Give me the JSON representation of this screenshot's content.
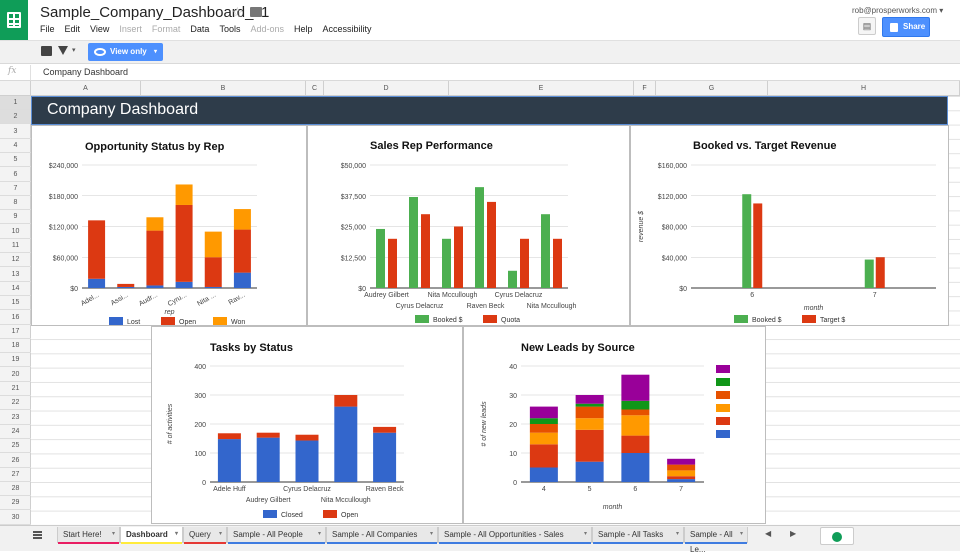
{
  "header": {
    "doc_title": "Sample_Company_Dashboard_v1",
    "user_email": "rob@prosperworks.com",
    "share_label": "Share",
    "menu": [
      {
        "label": "File",
        "disabled": false
      },
      {
        "label": "Edit",
        "disabled": false
      },
      {
        "label": "View",
        "disabled": false
      },
      {
        "label": "Insert",
        "disabled": true
      },
      {
        "label": "Format",
        "disabled": true
      },
      {
        "label": "Data",
        "disabled": false
      },
      {
        "label": "Tools",
        "disabled": false
      },
      {
        "label": "Add-ons",
        "disabled": true
      },
      {
        "label": "Help",
        "disabled": false
      },
      {
        "label": "Accessibility",
        "disabled": false
      }
    ]
  },
  "toolbar": {
    "view_only_label": "View only"
  },
  "formula_bar": {
    "fx": "fx",
    "value": "Company Dashboard"
  },
  "columns": [
    "A",
    "B",
    "C",
    "D",
    "E",
    "F",
    "G",
    "H"
  ],
  "rows": [
    "1",
    "2",
    "3",
    "4",
    "5",
    "6",
    "7",
    "8",
    "9",
    "10",
    "11",
    "12",
    "13",
    "14",
    "15",
    "16",
    "17",
    "18",
    "19",
    "20",
    "21",
    "22",
    "23",
    "24",
    "25",
    "26",
    "27",
    "28",
    "29",
    "30"
  ],
  "banner_title": "Company Dashboard",
  "charts": {
    "opportunity": {
      "title": "Opportunity Status by Rep",
      "chart_data": {
        "type": "bar",
        "stacked": true,
        "categories": [
          "Adel...",
          "Assi...",
          "Audr...",
          "Cyru...",
          "Nita ...",
          "Rav..."
        ],
        "xlabel": "rep",
        "yticks": [
          "$240,000",
          "$180,000",
          "$120,000",
          "$60,000",
          "$0"
        ],
        "ylim": [
          0,
          240000
        ],
        "series": [
          {
            "name": "Lost",
            "color": "#3366cc",
            "values": [
              18000,
              2000,
              5000,
              12000,
              2000,
              30000
            ]
          },
          {
            "name": "Open",
            "color": "#dc3912",
            "values": [
              114000,
              6000,
              107000,
              150000,
              58000,
              84000
            ]
          },
          {
            "name": "Won",
            "color": "#ff9900",
            "values": [
              0,
              0,
              26000,
              40000,
              50000,
              40000
            ]
          }
        ]
      }
    },
    "sales_rep": {
      "title": "Sales Rep Performance",
      "chart_data": {
        "type": "bar",
        "categories": [
          "Audrey Gilbert",
          "Cyrus Delacruz",
          "Nita Mccullough",
          "Raven Beck",
          "Cyrus Delacruz",
          "Nita Mccullough"
        ],
        "yticks": [
          "$50,000",
          "$37,500",
          "$25,000",
          "$12,500",
          "$0"
        ],
        "ylim": [
          0,
          50000
        ],
        "series": [
          {
            "name": "Booked $",
            "color": "#4caf50",
            "values": [
              24000,
              37000,
              20000,
              41000,
              7000,
              30000
            ]
          },
          {
            "name": "Quota",
            "color": "#dc3912",
            "values": [
              20000,
              30000,
              25000,
              35000,
              20000,
              20000
            ]
          }
        ]
      }
    },
    "booked_target": {
      "title": "Booked vs. Target Revenue",
      "chart_data": {
        "type": "bar",
        "categories": [
          "6",
          "7"
        ],
        "xlabel": "month",
        "ylabel": "revenue $",
        "yticks": [
          "$160,000",
          "$120,000",
          "$80,000",
          "$40,000",
          "$0"
        ],
        "ylim": [
          0,
          160000
        ],
        "series": [
          {
            "name": "Booked $",
            "color": "#4caf50",
            "values": [
              122000,
              37000
            ]
          },
          {
            "name": "Target $",
            "color": "#dc3912",
            "values": [
              110000,
              40000
            ]
          }
        ]
      }
    },
    "tasks": {
      "title": "Tasks by Status",
      "chart_data": {
        "type": "bar",
        "stacked": true,
        "categories": [
          "Adele Huff",
          "Audrey Gilbert",
          "Cyrus Delacruz",
          "Nita Mccullough",
          "Raven Beck"
        ],
        "ylabel": "# of activities",
        "yticks": [
          "400",
          "300",
          "200",
          "100",
          "0"
        ],
        "ylim": [
          0,
          400
        ],
        "series": [
          {
            "name": "Closed",
            "color": "#3366cc",
            "values": [
              148,
              153,
              143,
              260,
              170
            ]
          },
          {
            "name": "Open",
            "color": "#dc3912",
            "values": [
              20,
              17,
              20,
              40,
              20
            ]
          }
        ]
      }
    },
    "leads": {
      "title": "New Leads by Source",
      "chart_data": {
        "type": "bar",
        "stacked": true,
        "categories": [
          "4",
          "5",
          "6",
          "7"
        ],
        "xlabel": "month",
        "ylabel": "# of new leads",
        "yticks": [
          "40",
          "30",
          "20",
          "10",
          "0"
        ],
        "ylim": [
          0,
          40
        ],
        "series": [
          {
            "name": "",
            "color": "#3366cc",
            "values": [
              5,
              7,
              10,
              1
            ]
          },
          {
            "name": "",
            "color": "#dc3912",
            "values": [
              8,
              11,
              6,
              1
            ]
          },
          {
            "name": "",
            "color": "#ff9900",
            "values": [
              4,
              4,
              7,
              2
            ]
          },
          {
            "name": "",
            "color": "#e65100",
            "values": [
              3,
              4,
              2,
              2
            ]
          },
          {
            "name": "",
            "color": "#109618",
            "values": [
              2,
              1,
              3,
              0
            ]
          },
          {
            "name": "",
            "color": "#990099",
            "values": [
              4,
              3,
              9,
              2
            ]
          }
        ]
      }
    }
  },
  "tabs": [
    {
      "label": "Start Here!",
      "color": "#e91e63",
      "active": false
    },
    {
      "label": "Dashboard",
      "color": "#ffeb3b",
      "active": true
    },
    {
      "label": "Query",
      "color": "#e53935",
      "active": false
    },
    {
      "label": "Sample - All People",
      "color": "#3f7ce0",
      "active": false
    },
    {
      "label": "Sample - All Companies",
      "color": "#3f7ce0",
      "active": false
    },
    {
      "label": "Sample - All Opportunities - Sales",
      "color": "#3f7ce0",
      "active": false
    },
    {
      "label": "Sample - All Tasks",
      "color": "#3f7ce0",
      "active": false
    },
    {
      "label": "Sample - All Le...",
      "color": "#3f7ce0",
      "active": false
    }
  ]
}
